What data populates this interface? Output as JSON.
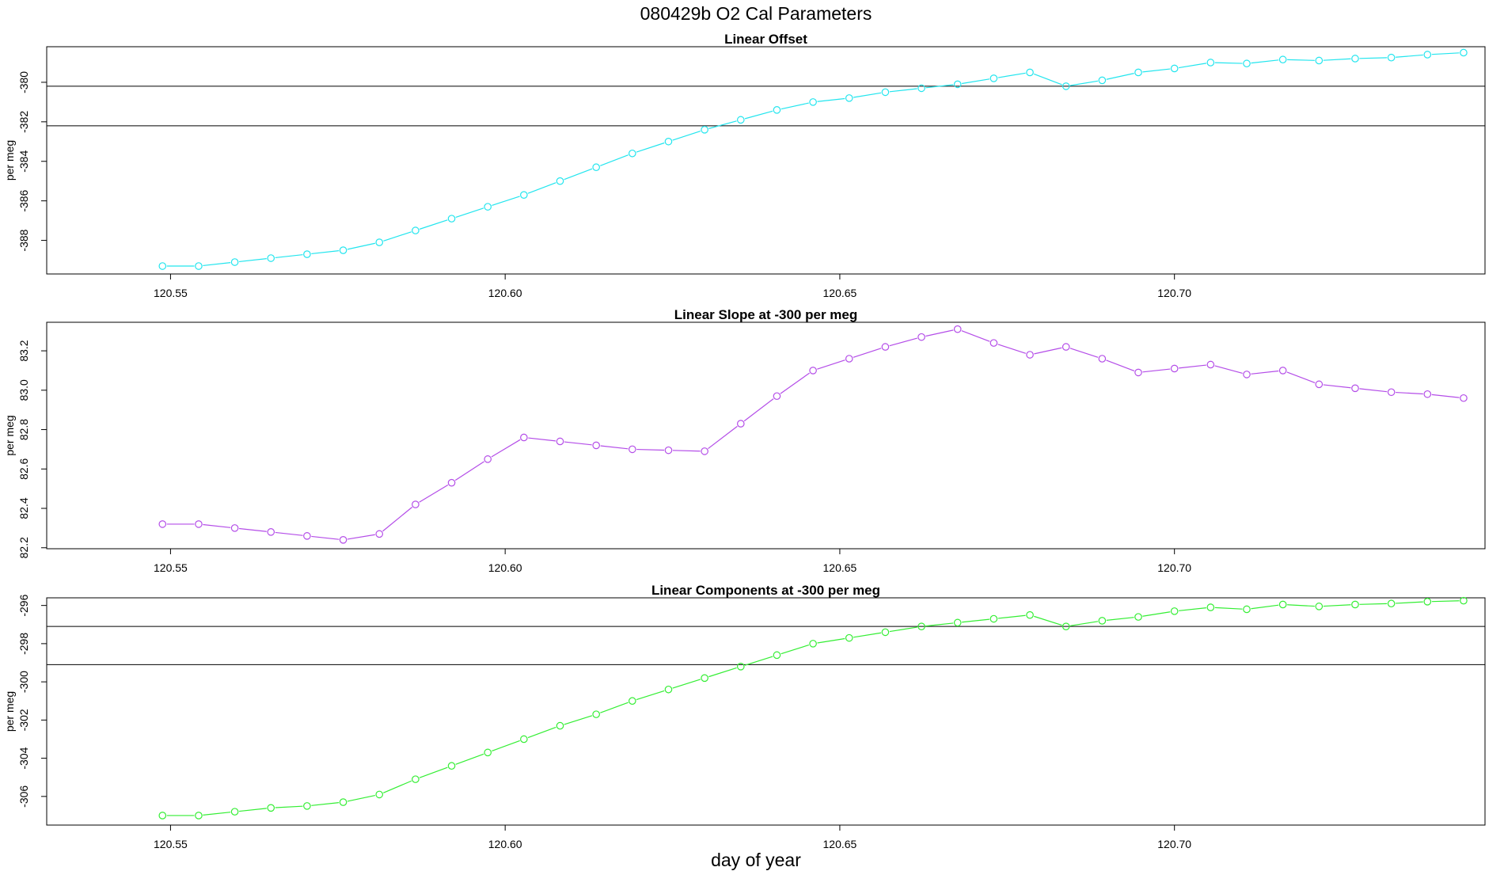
{
  "title": "080429b   O2 Cal Parameters",
  "xlabel": "day of year",
  "colors": {
    "offset": "#22e5ee",
    "slope": "#b44de8",
    "components": "#33ee33",
    "axes": "#000000"
  },
  "chart_data": [
    {
      "type": "line",
      "title": "Linear Offset",
      "xlabel": "",
      "ylabel": "per meg",
      "x_ticks": [
        "120.55",
        "120.60",
        "120.65",
        "120.70"
      ],
      "y_ticks": [
        "-380",
        "-382",
        "-384",
        "-386",
        "-388"
      ],
      "xlim": [
        120.5315,
        120.7464
      ],
      "ylim": [
        -389.7,
        -378.2
      ],
      "hlines": [
        -380.2,
        -382.2
      ],
      "series": [
        {
          "color": "#22e5ee",
          "x": [
            120.5488,
            120.5542,
            120.5596,
            120.565,
            120.5704,
            120.5758,
            120.5812,
            120.5866,
            120.592,
            120.5974,
            120.6028,
            120.6082,
            120.6136,
            120.619,
            120.6244,
            120.6298,
            120.6352,
            120.6406,
            120.646,
            120.6514,
            120.6568,
            120.6622,
            120.6676,
            120.673,
            120.6784,
            120.6838,
            120.6892,
            120.6946,
            120.7,
            120.7054,
            120.7108,
            120.7162,
            120.7216,
            120.727,
            120.7324,
            120.7378,
            120.7432
          ],
          "values": [
            -389.3,
            -389.3,
            -389.1,
            -388.9,
            -388.7,
            -388.5,
            -388.1,
            -387.5,
            -386.9,
            -386.3,
            -385.7,
            -385.0,
            -384.3,
            -383.6,
            -383.0,
            -382.4,
            -381.9,
            -381.4,
            -381.0,
            -380.8,
            -380.5,
            -380.3,
            -380.1,
            -379.8,
            -379.5,
            -380.2,
            -379.9,
            -379.5,
            -379.3,
            -379.0,
            -379.05,
            -378.85,
            -378.9,
            -378.8,
            -378.75,
            -378.6,
            -378.5
          ]
        }
      ]
    },
    {
      "type": "line",
      "title": "Linear Slope at -300 per meg",
      "xlabel": "",
      "ylabel": "per meg",
      "x_ticks": [
        "120.55",
        "120.60",
        "120.65",
        "120.70"
      ],
      "y_ticks": [
        "82.2",
        "82.4",
        "82.6",
        "82.8",
        "83.0",
        "83.2"
      ],
      "xlim": [
        120.5315,
        120.7464
      ],
      "ylim": [
        82.195,
        83.345
      ],
      "series": [
        {
          "color": "#b44de8",
          "x": [
            120.5488,
            120.5542,
            120.5596,
            120.565,
            120.5704,
            120.5758,
            120.5812,
            120.5866,
            120.592,
            120.5974,
            120.6028,
            120.6082,
            120.6136,
            120.619,
            120.6244,
            120.6298,
            120.6352,
            120.6406,
            120.646,
            120.6514,
            120.6568,
            120.6622,
            120.6676,
            120.673,
            120.6784,
            120.6838,
            120.6892,
            120.6946,
            120.7,
            120.7054,
            120.7108,
            120.7162,
            120.7216,
            120.727,
            120.7324,
            120.7378,
            120.7432
          ],
          "values": [
            82.32,
            82.32,
            82.3,
            82.28,
            82.26,
            82.24,
            82.27,
            82.42,
            82.53,
            82.65,
            82.76,
            82.74,
            82.72,
            82.7,
            82.695,
            82.69,
            82.83,
            82.97,
            83.1,
            83.16,
            83.22,
            83.27,
            83.31,
            83.24,
            83.18,
            83.22,
            83.16,
            83.09,
            83.11,
            83.13,
            83.08,
            83.1,
            83.03,
            83.01,
            82.99,
            82.98,
            82.96
          ]
        }
      ]
    },
    {
      "type": "line",
      "title": "Linear Components at -300 per meg",
      "xlabel": "day of year",
      "ylabel": "per meg",
      "x_ticks": [
        "120.55",
        "120.60",
        "120.65",
        "120.70"
      ],
      "y_ticks": [
        "-296",
        "-298",
        "-300",
        "-302",
        "-304",
        "-306"
      ],
      "xlim": [
        120.5315,
        120.7464
      ],
      "ylim": [
        -307.5,
        -295.6
      ],
      "hlines": [
        -297.1,
        -299.1
      ],
      "series": [
        {
          "color": "#33ee33",
          "x": [
            120.5488,
            120.5542,
            120.5596,
            120.565,
            120.5704,
            120.5758,
            120.5812,
            120.5866,
            120.592,
            120.5974,
            120.6028,
            120.6082,
            120.6136,
            120.619,
            120.6244,
            120.6298,
            120.6352,
            120.6406,
            120.646,
            120.6514,
            120.6568,
            120.6622,
            120.6676,
            120.673,
            120.6784,
            120.6838,
            120.6892,
            120.6946,
            120.7,
            120.7054,
            120.7108,
            120.7162,
            120.7216,
            120.727,
            120.7324,
            120.7378,
            120.7432
          ],
          "values": [
            -307.0,
            -307.0,
            -306.8,
            -306.6,
            -306.5,
            -306.3,
            -305.9,
            -305.1,
            -304.4,
            -303.7,
            -303.0,
            -302.3,
            -301.7,
            -301.0,
            -300.4,
            -299.8,
            -299.2,
            -298.6,
            -298.0,
            -297.7,
            -297.4,
            -297.1,
            -296.9,
            -296.7,
            -296.5,
            -297.1,
            -296.8,
            -296.6,
            -296.3,
            -296.1,
            -296.2,
            -295.95,
            -296.05,
            -295.95,
            -295.9,
            -295.8,
            -295.75
          ]
        }
      ]
    }
  ]
}
